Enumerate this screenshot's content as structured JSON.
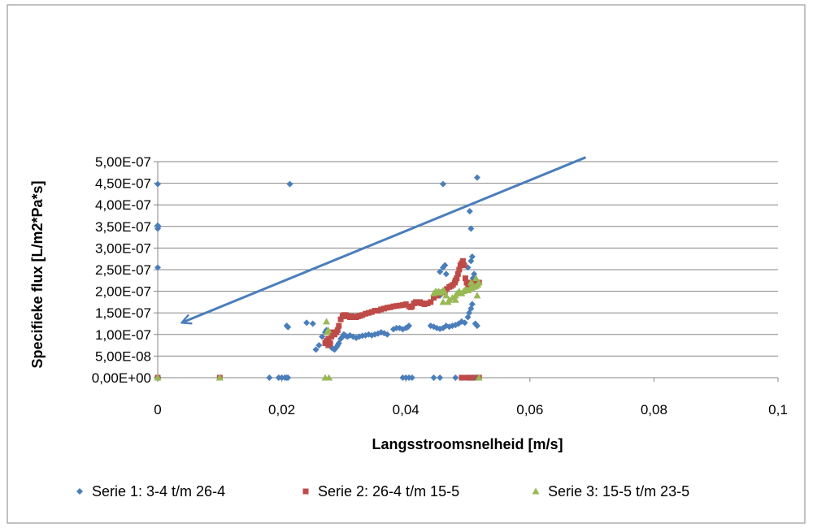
{
  "chart_data": {
    "type": "scatter",
    "title": "",
    "xlabel": "Langsstroomsnelheid [m/s]",
    "ylabel": "Specifieke flux [L/m2*Pa*s]",
    "xlim": [
      0,
      0.1
    ],
    "ylim": [
      0,
      5e-07
    ],
    "x_ticks": [
      0,
      0.02,
      0.04,
      0.06,
      0.08,
      0.1
    ],
    "x_tick_labels": [
      "0",
      "0,02",
      "0,04",
      "0,06",
      "0,08",
      "0,1"
    ],
    "y_ticks": [
      0,
      5e-08,
      1e-07,
      1.5e-07,
      2e-07,
      2.5e-07,
      3e-07,
      3.5e-07,
      4e-07,
      4.5e-07,
      5e-07
    ],
    "y_tick_labels": [
      "0,00E+00",
      "5,00E-08",
      "1,00E-07",
      "1,50E-07",
      "2,00E-07",
      "2,50E-07",
      "3,00E-07",
      "3,50E-07",
      "4,00E-07",
      "4,50E-07",
      "5,00E-07"
    ],
    "grid": "horizontal",
    "legend_position": "bottom",
    "colors": {
      "series1": "#4a7ebb",
      "series2": "#be4b48",
      "series3": "#98b954",
      "arrow": "#4a7ebb",
      "grid": "#868686",
      "frame": "#868686"
    },
    "series": [
      {
        "name": "Serie 1: 3-4 t/m 26-4",
        "marker": "diamond",
        "x": [
          0,
          0,
          0,
          0,
          0,
          0.0001,
          0.0001,
          0.018,
          0.0195,
          0.02,
          0.0205,
          0.0208,
          0.021,
          0.0213,
          0.0208,
          0.021,
          0.024,
          0.025,
          0.0255,
          0.026,
          0.0265,
          0.027,
          0.0272,
          0.0275,
          0.0278,
          0.028,
          0.0282,
          0.0285,
          0.0288,
          0.029,
          0.0292,
          0.0295,
          0.0298,
          0.03,
          0.0303,
          0.0306,
          0.031,
          0.0315,
          0.032,
          0.0325,
          0.033,
          0.0335,
          0.034,
          0.0345,
          0.035,
          0.0355,
          0.036,
          0.0365,
          0.037,
          0.038,
          0.0385,
          0.039,
          0.0395,
          0.04,
          0.0403,
          0.0405,
          0.041,
          0.0413,
          0.0395,
          0.04,
          0.0405,
          0.041,
          0.044,
          0.0445,
          0.045,
          0.0455,
          0.046,
          0.0465,
          0.047,
          0.0475,
          0.048,
          0.0485,
          0.049,
          0.0495,
          0.05,
          0.0502,
          0.0505,
          0.0507,
          0.0508,
          0.051,
          0.0512,
          0.0515,
          0.05,
          0.0505,
          0.0507,
          0.0505,
          0.0503,
          0.0515,
          0.05,
          0.0502,
          0.0505,
          0.0508,
          0.046,
          0.0463,
          0.0455,
          0.0465,
          0.046,
          0.0455,
          0.046,
          0.0445,
          0.0455,
          0.048,
          0.049,
          0.051,
          0.0515
        ],
        "y": [
          0,
          2.55e-07,
          3.45e-07,
          3.52e-07,
          4.48e-07,
          3.5e-07,
          0,
          0,
          0,
          0,
          0,
          1.2e-07,
          1.17e-07,
          4.48e-07,
          0,
          0,
          1.27e-07,
          1.25e-07,
          6.5e-08,
          7.5e-08,
          9.5e-08,
          1.05e-07,
          1.1e-07,
          8.8e-08,
          8e-08,
          7e-08,
          6.8e-08,
          6.5e-08,
          7e-08,
          7.5e-08,
          8e-08,
          9e-08,
          9.5e-08,
          1e-07,
          9.7e-08,
          9.5e-08,
          9.8e-08,
          9.5e-08,
          9.2e-08,
          9.5e-08,
          9.7e-08,
          9.8e-08,
          1e-07,
          9.8e-08,
          1e-07,
          1.02e-07,
          1.05e-07,
          1.03e-07,
          1e-07,
          1.12e-07,
          1.15e-07,
          1.15e-07,
          1.12e-07,
          1.15e-07,
          1.17e-07,
          1.2e-07,
          1.68e-07,
          1.7e-07,
          0,
          0,
          0,
          0,
          1.2e-07,
          1.18e-07,
          1.15e-07,
          1.13e-07,
          1.15e-07,
          1.2e-07,
          1.18e-07,
          1.2e-07,
          1.22e-07,
          1.25e-07,
          1.3e-07,
          1.27e-07,
          1.4e-07,
          1.5e-07,
          1.6e-07,
          1.7e-07,
          2.3e-07,
          2.4e-07,
          1.25e-07,
          1.2e-07,
          2.55e-07,
          2.7e-07,
          2.8e-07,
          3.45e-07,
          3.85e-07,
          4.63e-07,
          0,
          0,
          0,
          0,
          2.55e-07,
          2.6e-07,
          2.45e-07,
          2.4e-07,
          2e-07,
          1.9e-07,
          4.48e-07,
          0,
          0,
          0,
          0,
          0,
          0
        ]
      },
      {
        "name": "Serie 2: 26-4 t/m 15-5",
        "marker": "square",
        "x": [
          0,
          0.01,
          0.027,
          0.0272,
          0.0275,
          0.0278,
          0.028,
          0.0282,
          0.0285,
          0.0288,
          0.029,
          0.0292,
          0.0295,
          0.0298,
          0.03,
          0.0303,
          0.0305,
          0.0308,
          0.031,
          0.0313,
          0.0316,
          0.032,
          0.0323,
          0.0326,
          0.033,
          0.0335,
          0.034,
          0.0345,
          0.035,
          0.0355,
          0.036,
          0.0365,
          0.037,
          0.0375,
          0.038,
          0.0385,
          0.039,
          0.0395,
          0.04,
          0.0405,
          0.0408,
          0.041,
          0.0413,
          0.0416,
          0.042,
          0.0423,
          0.0426,
          0.043,
          0.0435,
          0.044,
          0.0445,
          0.045,
          0.0455,
          0.046,
          0.0463,
          0.0466,
          0.047,
          0.0473,
          0.0476,
          0.0479,
          0.048,
          0.0482,
          0.0484,
          0.0486,
          0.0488,
          0.049,
          0.0492,
          0.0494,
          0.0496,
          0.0498,
          0.05,
          0.0505,
          0.051,
          0.0515,
          0.0518,
          0.049,
          0.0495,
          0.05,
          0.0505,
          0.0515,
          0.0518,
          0.0275
        ],
        "y": [
          0,
          0,
          8e-08,
          8.5e-08,
          9e-08,
          8e-08,
          9.5e-08,
          1.05e-07,
          1e-07,
          1.05e-07,
          1.1e-07,
          1.2e-07,
          1.35e-07,
          1.42e-07,
          1.45e-07,
          1.45e-07,
          1.43e-07,
          1.42e-07,
          1.4e-07,
          1.42e-07,
          1.4e-07,
          1.4e-07,
          1.42e-07,
          1.43e-07,
          1.45e-07,
          1.48e-07,
          1.5e-07,
          1.52e-07,
          1.55e-07,
          1.55e-07,
          1.58e-07,
          1.6e-07,
          1.62e-07,
          1.63e-07,
          1.65e-07,
          1.66e-07,
          1.67e-07,
          1.68e-07,
          1.7e-07,
          1.65e-07,
          1.63e-07,
          1.65e-07,
          1.72e-07,
          1.75e-07,
          1.73e-07,
          1.75e-07,
          1.72e-07,
          1.7e-07,
          1.72e-07,
          1.75e-07,
          1.85e-07,
          1.9e-07,
          1.95e-07,
          1.98e-07,
          2e-07,
          2.05e-07,
          2.1e-07,
          2.12e-07,
          2.15e-07,
          2.2e-07,
          2.25e-07,
          2.3e-07,
          2.4e-07,
          2.5e-07,
          2.6e-07,
          2.65e-07,
          2.7e-07,
          2.6e-07,
          2.3e-07,
          2.2e-07,
          2.15e-07,
          2.2e-07,
          2.2e-07,
          2.2e-07,
          2.2e-07,
          0,
          0,
          0,
          0,
          0,
          0,
          7.5e-08
        ]
      },
      {
        "name": "Serie 3: 15-5 t/m 23-5",
        "marker": "triangle",
        "x": [
          0,
          0.01,
          0.027,
          0.0272,
          0.0275,
          0.0273,
          0.0276,
          0.0445,
          0.0448,
          0.045,
          0.0453,
          0.0456,
          0.046,
          0.0462,
          0.0465,
          0.0468,
          0.047,
          0.0475,
          0.048,
          0.0483,
          0.0486,
          0.049,
          0.0493,
          0.0496,
          0.05,
          0.0503,
          0.0506,
          0.051,
          0.0513,
          0.0516,
          0.0518,
          0.0515,
          0.046,
          0.048,
          0.0518,
          0.0513,
          0.0508,
          0.0505
        ],
        "y": [
          0,
          0,
          0,
          1.3e-07,
          1.1e-07,
          1.05e-07,
          0,
          1.95e-07,
          2e-07,
          1.98e-07,
          2e-07,
          1.97e-07,
          2.02e-07,
          2e-07,
          1.9e-07,
          1.75e-07,
          1.8e-07,
          1.85e-07,
          1.9e-07,
          1.95e-07,
          2e-07,
          1.95e-07,
          2e-07,
          2.05e-07,
          2.02e-07,
          2.05e-07,
          2.08e-07,
          2.1e-07,
          2.12e-07,
          2.15e-07,
          2.2e-07,
          1.9e-07,
          1.75e-07,
          1.8e-07,
          0,
          2.3e-07,
          2.15e-07,
          2.2e-07
        ]
      }
    ],
    "annotations": [
      {
        "type": "arrow",
        "from": [
          0.069,
          5.1e-07
        ],
        "to": [
          0.004,
          1.28e-07
        ]
      }
    ]
  }
}
